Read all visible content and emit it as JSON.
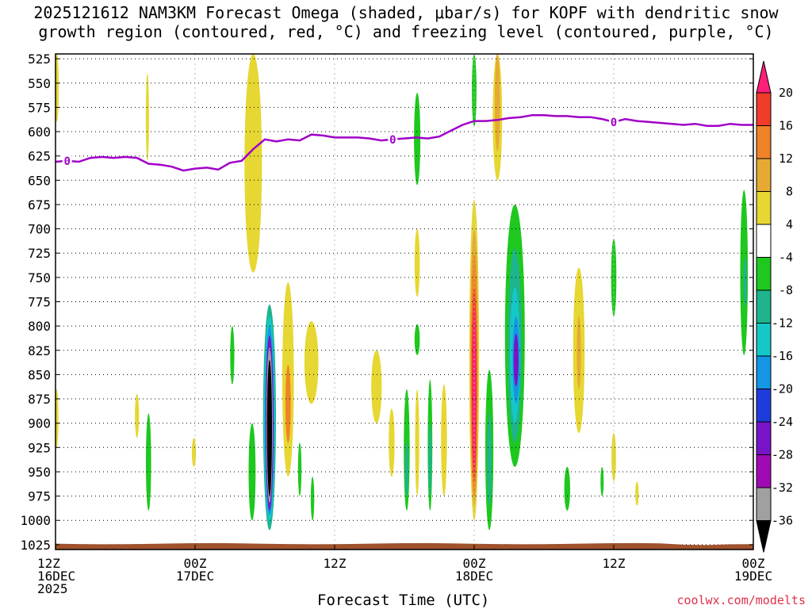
{
  "title_line1": "2025121612 NAM3KM Forecast Omega (shaded, μbar/s) for KOPF with dendritic snow",
  "title_line2": "growth region (contoured, red, °C) and freezing level (contoured, purple, °C)",
  "credit": "coolwx.com/modelts",
  "chart_data": {
    "type": "heatmap",
    "xlabel": "Forecast Time (UTC)",
    "x_range_hours": [
      0,
      60
    ],
    "x_ticks": [
      {
        "h": 0,
        "l1": "12Z",
        "l2": "16DEC",
        "l3": "2025"
      },
      {
        "h": 12,
        "l1": "00Z",
        "l2": "17DEC",
        "l3": ""
      },
      {
        "h": 24,
        "l1": "12Z",
        "l2": "",
        "l3": ""
      },
      {
        "h": 36,
        "l1": "00Z",
        "l2": "18DEC",
        "l3": ""
      },
      {
        "h": 48,
        "l1": "12Z",
        "l2": "",
        "l3": ""
      },
      {
        "h": 60,
        "l1": "00Z",
        "l2": "19DEC",
        "l3": ""
      }
    ],
    "y_range_hpa": [
      1030,
      520
    ],
    "y_ticks": [
      "525",
      "550",
      "575",
      "600",
      "625",
      "650",
      "675",
      "700",
      "725",
      "750",
      "775",
      "800",
      "825",
      "850",
      "875",
      "900",
      "925",
      "950",
      "975",
      "1000",
      "1025"
    ],
    "colorbar": {
      "labels": [
        "20",
        "16",
        "12",
        "8",
        "4",
        "-4",
        "-8",
        "-12",
        "-16",
        "-20",
        "-24",
        "-28",
        "-32",
        "-36"
      ],
      "colors": [
        "#ff1e78",
        "#f03c28",
        "#f08228",
        "#e6aa32",
        "#e6d732",
        "#ffffff",
        "#1ec81e",
        "#1eb48c",
        "#14c8c8",
        "#1496e6",
        "#1e3cdc",
        "#7814c8",
        "#a00ab4",
        "#a0a0a0",
        "#000000"
      ]
    },
    "freezing_level": {
      "label": "0",
      "color": "#a000c8",
      "label_at_hours": [
        1,
        29,
        48
      ],
      "points": [
        [
          0,
          631
        ],
        [
          1,
          630
        ],
        [
          2,
          631
        ],
        [
          3,
          627
        ],
        [
          4,
          626
        ],
        [
          5,
          627
        ],
        [
          6,
          626
        ],
        [
          7,
          627
        ],
        [
          8,
          633
        ],
        [
          9,
          634
        ],
        [
          10,
          636
        ],
        [
          11,
          640
        ],
        [
          12,
          638
        ],
        [
          13,
          637
        ],
        [
          14,
          639
        ],
        [
          15,
          632
        ],
        [
          16,
          630
        ],
        [
          17,
          618
        ],
        [
          18,
          608
        ],
        [
          19,
          610
        ],
        [
          20,
          608
        ],
        [
          21,
          609
        ],
        [
          22,
          603
        ],
        [
          23,
          604
        ],
        [
          24,
          606
        ],
        [
          25,
          606
        ],
        [
          26,
          606
        ],
        [
          27,
          607
        ],
        [
          28,
          609
        ],
        [
          29,
          608
        ],
        [
          30,
          607
        ],
        [
          31,
          606
        ],
        [
          32,
          607
        ],
        [
          33,
          605
        ],
        [
          34,
          599
        ],
        [
          35,
          593
        ],
        [
          36,
          589
        ],
        [
          37,
          589
        ],
        [
          38,
          588
        ],
        [
          39,
          586
        ],
        [
          40,
          585
        ],
        [
          41,
          583
        ],
        [
          42,
          583
        ],
        [
          43,
          584
        ],
        [
          44,
          584
        ],
        [
          45,
          585
        ],
        [
          46,
          585
        ],
        [
          47,
          587
        ],
        [
          48,
          590
        ],
        [
          49,
          587
        ],
        [
          50,
          589
        ],
        [
          51,
          590
        ],
        [
          52,
          591
        ],
        [
          53,
          592
        ],
        [
          54,
          593
        ],
        [
          55,
          592
        ],
        [
          56,
          594
        ],
        [
          57,
          594
        ],
        [
          58,
          592
        ],
        [
          59,
          593
        ],
        [
          60,
          593
        ]
      ]
    },
    "omega_regions": [
      {
        "h": 0.1,
        "p0": 520,
        "p1": 590,
        "w": 0.35,
        "v": 4
      },
      {
        "h": 0.1,
        "p0": 865,
        "p1": 925,
        "w": 0.3,
        "v": 4
      },
      {
        "h": 7.0,
        "p0": 870,
        "p1": 915,
        "w": 0.35,
        "v": 4
      },
      {
        "h": 7.9,
        "p0": 540,
        "p1": 630,
        "w": 0.2,
        "v": 4
      },
      {
        "h": 8.0,
        "p0": 890,
        "p1": 990,
        "w": 0.45,
        "v": -4
      },
      {
        "h": 11.9,
        "p0": 915,
        "p1": 945,
        "w": 0.35,
        "v": 4
      },
      {
        "h": 15.2,
        "p0": 800,
        "p1": 860,
        "w": 0.35,
        "v": -4
      },
      {
        "h": 17.0,
        "p0": 520,
        "p1": 745,
        "w": 1.5,
        "v": 4
      },
      {
        "h": 16.9,
        "p0": 900,
        "p1": 1000,
        "w": 0.6,
        "v": -4
      },
      {
        "h": 18.4,
        "p0": 778,
        "p1": 1010,
        "w": 1.1,
        "v": -8
      },
      {
        "h": 18.4,
        "p0": 790,
        "p1": 1002,
        "w": 0.95,
        "v": -12
      },
      {
        "h": 18.4,
        "p0": 800,
        "p1": 995,
        "w": 0.8,
        "v": -16
      },
      {
        "h": 18.4,
        "p0": 810,
        "p1": 990,
        "w": 0.68,
        "v": -24
      },
      {
        "h": 18.4,
        "p0": 822,
        "p1": 982,
        "w": 0.55,
        "v": -32
      },
      {
        "h": 18.4,
        "p0": 835,
        "p1": 975,
        "w": 0.42,
        "v": -36
      },
      {
        "h": 20.0,
        "p0": 755,
        "p1": 955,
        "w": 1.0,
        "v": 4
      },
      {
        "h": 20.0,
        "p0": 840,
        "p1": 920,
        "w": 0.45,
        "v": 12
      },
      {
        "h": 22.0,
        "p0": 795,
        "p1": 880,
        "w": 1.2,
        "v": 4
      },
      {
        "h": 21.0,
        "p0": 920,
        "p1": 975,
        "w": 0.3,
        "v": -4
      },
      {
        "h": 22.1,
        "p0": 955,
        "p1": 1000,
        "w": 0.3,
        "v": -4
      },
      {
        "h": 27.6,
        "p0": 825,
        "p1": 900,
        "w": 0.9,
        "v": 4
      },
      {
        "h": 28.9,
        "p0": 885,
        "p1": 955,
        "w": 0.5,
        "v": 4
      },
      {
        "h": 30.2,
        "p0": 865,
        "p1": 990,
        "w": 0.5,
        "v": -4
      },
      {
        "h": 30.2,
        "p0": 920,
        "p1": 975,
        "w": 0.3,
        "v": -8
      },
      {
        "h": 31.1,
        "p0": 560,
        "p1": 655,
        "w": 0.55,
        "v": -4
      },
      {
        "h": 31.1,
        "p0": 700,
        "p1": 770,
        "w": 0.45,
        "v": 4
      },
      {
        "h": 31.1,
        "p0": 798,
        "p1": 830,
        "w": 0.45,
        "v": -4
      },
      {
        "h": 31.1,
        "p0": 865,
        "p1": 975,
        "w": 0.35,
        "v": 4
      },
      {
        "h": 32.2,
        "p0": 855,
        "p1": 990,
        "w": 0.4,
        "v": -4
      },
      {
        "h": 32.2,
        "p0": 900,
        "p1": 975,
        "w": 0.25,
        "v": -8
      },
      {
        "h": 33.4,
        "p0": 860,
        "p1": 975,
        "w": 0.5,
        "v": 4
      },
      {
        "h": 36.0,
        "p0": 520,
        "p1": 595,
        "w": 0.4,
        "v": -4
      },
      {
        "h": 36.0,
        "p0": 670,
        "p1": 1000,
        "w": 0.85,
        "v": 4
      },
      {
        "h": 36.0,
        "p0": 700,
        "p1": 985,
        "w": 0.7,
        "v": 8
      },
      {
        "h": 36.0,
        "p0": 725,
        "p1": 975,
        "w": 0.55,
        "v": 12
      },
      {
        "h": 36.0,
        "p0": 760,
        "p1": 960,
        "w": 0.42,
        "v": 16
      },
      {
        "h": 36.0,
        "p0": 780,
        "p1": 950,
        "w": 0.3,
        "v": 20
      },
      {
        "h": 37.3,
        "p0": 845,
        "p1": 1010,
        "w": 0.7,
        "v": -4
      },
      {
        "h": 37.3,
        "p0": 890,
        "p1": 985,
        "w": 0.4,
        "v": -8
      },
      {
        "h": 38.0,
        "p0": 520,
        "p1": 650,
        "w": 0.8,
        "v": 4
      },
      {
        "h": 38.0,
        "p0": 520,
        "p1": 620,
        "w": 0.45,
        "v": 8
      },
      {
        "h": 39.5,
        "p0": 675,
        "p1": 945,
        "w": 1.7,
        "v": -4
      },
      {
        "h": 39.5,
        "p0": 720,
        "p1": 920,
        "w": 1.2,
        "v": -8
      },
      {
        "h": 39.5,
        "p0": 760,
        "p1": 900,
        "w": 0.85,
        "v": -12
      },
      {
        "h": 39.6,
        "p0": 790,
        "p1": 880,
        "w": 0.6,
        "v": -16
      },
      {
        "h": 39.6,
        "p0": 808,
        "p1": 862,
        "w": 0.42,
        "v": -24
      },
      {
        "h": 45.0,
        "p0": 740,
        "p1": 910,
        "w": 1.0,
        "v": 4
      },
      {
        "h": 45.0,
        "p0": 790,
        "p1": 865,
        "w": 0.35,
        "v": 8
      },
      {
        "h": 44.0,
        "p0": 945,
        "p1": 990,
        "w": 0.5,
        "v": -4
      },
      {
        "h": 47.0,
        "p0": 945,
        "p1": 975,
        "w": 0.2,
        "v": -4
      },
      {
        "h": 48.0,
        "p0": 710,
        "p1": 790,
        "w": 0.45,
        "v": -4
      },
      {
        "h": 48.0,
        "p0": 910,
        "p1": 960,
        "w": 0.4,
        "v": 4
      },
      {
        "h": 50.0,
        "p0": 960,
        "p1": 985,
        "w": 0.28,
        "v": 4
      },
      {
        "h": 59.2,
        "p0": 660,
        "p1": 830,
        "w": 0.65,
        "v": -4
      },
      {
        "h": 59.3,
        "p0": 730,
        "p1": 780,
        "w": 0.3,
        "v": -8
      }
    ]
  }
}
